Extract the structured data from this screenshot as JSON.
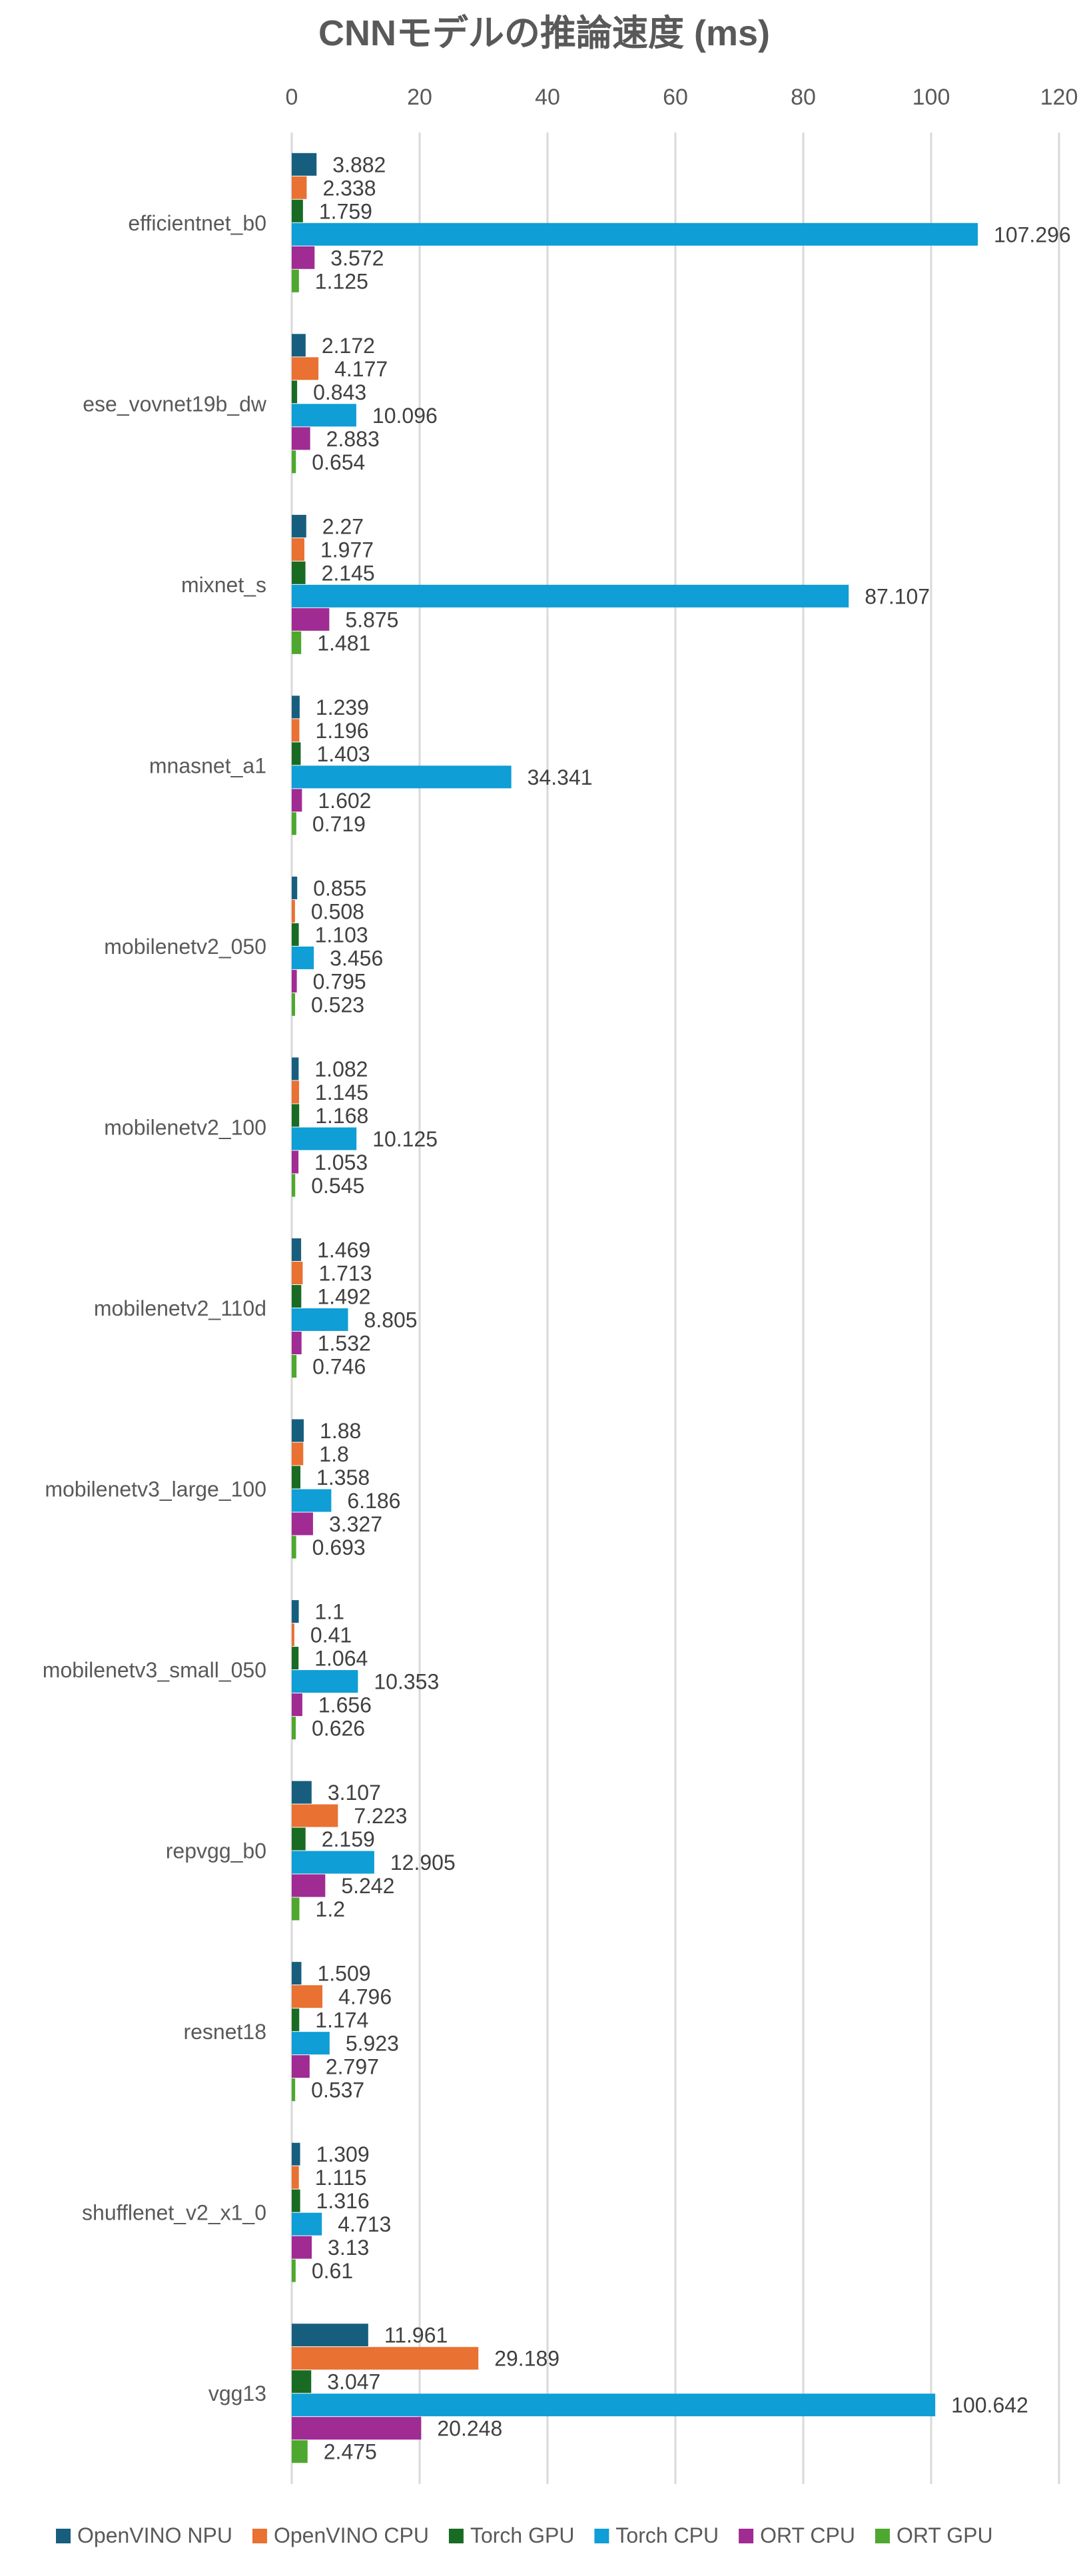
{
  "chart_data": {
    "type": "bar",
    "orientation": "horizontal",
    "title": "CNNモデルの推論速度 (ms)",
    "xlabel": "",
    "ylabel": "",
    "xlim": [
      0,
      120
    ],
    "x_ticks": [
      "0",
      "20",
      "40",
      "60",
      "80",
      "100",
      "120"
    ],
    "grid": true,
    "legend_position": "bottom",
    "categories": [
      "efficientnet_b0",
      "ese_vovnet19b_dw",
      "mixnet_s",
      "mnasnet_a1",
      "mobilenetv2_050",
      "mobilenetv2_100",
      "mobilenetv2_110d",
      "mobilenetv3_large_100",
      "mobilenetv3_small_050",
      "repvgg_b0",
      "resnet18",
      "shufflenet_v2_x1_0",
      "vgg13"
    ],
    "series": [
      {
        "name": "OpenVINO NPU",
        "color": "#175e7e",
        "values": [
          3.882,
          2.172,
          2.27,
          1.239,
          0.855,
          1.082,
          1.469,
          1.88,
          1.1,
          3.107,
          1.509,
          1.309,
          11.961
        ]
      },
      {
        "name": "OpenVINO CPU",
        "color": "#e97132",
        "values": [
          2.338,
          4.177,
          1.977,
          1.196,
          0.508,
          1.145,
          1.713,
          1.8,
          0.41,
          7.223,
          4.796,
          1.115,
          29.189
        ]
      },
      {
        "name": "Torch GPU",
        "color": "#196b24",
        "values": [
          1.759,
          0.843,
          2.145,
          1.403,
          1.103,
          1.168,
          1.492,
          1.358,
          1.064,
          2.159,
          1.174,
          1.316,
          3.047
        ]
      },
      {
        "name": "Torch CPU",
        "color": "#0f9ed5",
        "values": [
          107.296,
          10.096,
          87.107,
          34.341,
          3.456,
          10.125,
          8.805,
          6.186,
          10.353,
          12.905,
          5.923,
          4.713,
          100.642
        ]
      },
      {
        "name": "ORT CPU",
        "color": "#a02b93",
        "values": [
          3.572,
          2.883,
          5.875,
          1.602,
          0.795,
          1.053,
          1.532,
          3.327,
          1.656,
          5.242,
          2.797,
          3.13,
          20.248
        ]
      },
      {
        "name": "ORT GPU",
        "color": "#4ea72e",
        "values": [
          1.125,
          0.654,
          1.481,
          0.719,
          0.523,
          0.545,
          0.746,
          0.693,
          0.626,
          1.2,
          0.537,
          0.61,
          2.475
        ]
      }
    ]
  }
}
